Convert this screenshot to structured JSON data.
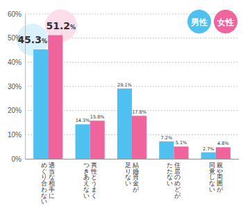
{
  "chart_data": {
    "type": "bar",
    "categories": [
      "適当な相手に\nめぐり合わない",
      "異性とうまく\nつきあえない",
      "結婚資金が\n足りない",
      "住居のめどが\nたたない",
      "親や周囲が\n同意しない"
    ],
    "series": [
      {
        "name": "男性",
        "color": "#4fc1f0",
        "values": [
          45.3,
          14.3,
          29.1,
          7.2,
          2.7
        ],
        "value_labels": [
          "45.3%",
          "14.3%",
          "29.1%",
          "7.2%",
          "2.7%"
        ]
      },
      {
        "name": "女性",
        "color": "#f0649e",
        "values": [
          51.2,
          15.8,
          17.8,
          5.1,
          4.8
        ],
        "value_labels": [
          "51.2%",
          "15.8%",
          "17.8%",
          "5.1%",
          "4.8%"
        ]
      }
    ],
    "ylim": [
      0,
      60
    ],
    "yticks": [
      {
        "value": 0,
        "label": "0%"
      },
      {
        "value": 10,
        "label": "10%"
      },
      {
        "value": 20,
        "label": "20%"
      },
      {
        "value": 30,
        "label": "30%"
      },
      {
        "value": 40,
        "label": "40%"
      },
      {
        "value": 50,
        "label": "50%"
      },
      {
        "value": 60,
        "label": "60%"
      }
    ],
    "grid": true,
    "legend": "upper right",
    "data_labels": true
  }
}
